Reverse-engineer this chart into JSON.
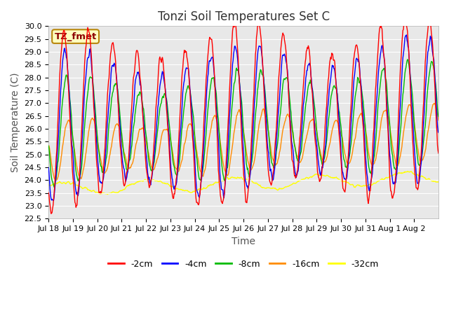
{
  "title": "Tonzi Soil Temperatures Set C",
  "xlabel": "Time",
  "ylabel": "Soil Temperature (C)",
  "annotation": "TZ_fmet",
  "ylim": [
    22.5,
    30.0
  ],
  "series_colors": {
    "-2cm": "#FF0000",
    "-4cm": "#0000FF",
    "-8cm": "#00BB00",
    "-16cm": "#FF8C00",
    "-32cm": "#FFFF00"
  },
  "legend_labels": [
    "-2cm",
    "-4cm",
    "-8cm",
    "-16cm",
    "-32cm"
  ],
  "xtick_labels": [
    "Jul 18",
    "Jul 19",
    "Jul 20",
    "Jul 21",
    "Jul 22",
    "Jul 23",
    "Jul 24",
    "Jul 25",
    "Jul 26",
    "Jul 27",
    "Jul 28",
    "Jul 29",
    "Jul 30",
    "Jul 31",
    "Aug 1",
    "Aug 2"
  ],
  "figure_bg_color": "#FFFFFF",
  "plot_bg_color": "#E8E8E8",
  "grid_color": "#FFFFFF",
  "title_fontsize": 12,
  "axis_label_fontsize": 10,
  "tick_fontsize": 8,
  "legend_fontsize": 9
}
